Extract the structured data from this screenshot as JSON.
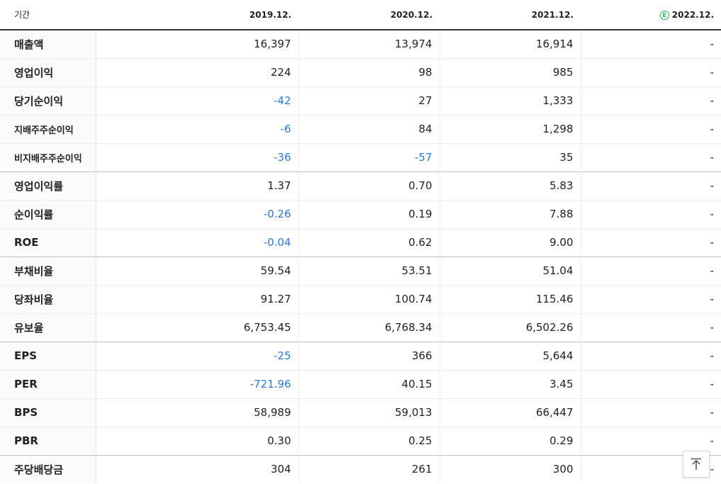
{
  "header": {
    "period_label": "기간",
    "columns": [
      "2019.12.",
      "2020.12.",
      "2021.12.",
      "2022.12."
    ],
    "estimate_badge": "E"
  },
  "rows": [
    {
      "label": "매출액",
      "values": [
        "16,397",
        "13,974",
        "16,914",
        "-"
      ]
    },
    {
      "label": "영업이익",
      "values": [
        "224",
        "98",
        "985",
        "-"
      ]
    },
    {
      "label": "당기순이익",
      "values": [
        "-42",
        "27",
        "1,333",
        "-"
      ]
    },
    {
      "label": "지배주주순이익",
      "values": [
        "-6",
        "84",
        "1,298",
        "-"
      ]
    },
    {
      "label": "비지배주주순이익",
      "values": [
        "-36",
        "-57",
        "35",
        "-"
      ]
    },
    {
      "label": "영업이익률",
      "values": [
        "1.37",
        "0.70",
        "5.83",
        "-"
      ]
    },
    {
      "label": "순이익률",
      "values": [
        "-0.26",
        "0.19",
        "7.88",
        "-"
      ]
    },
    {
      "label": "ROE",
      "values": [
        "-0.04",
        "0.62",
        "9.00",
        "-"
      ]
    },
    {
      "label": "부채비율",
      "values": [
        "59.54",
        "53.51",
        "51.04",
        "-"
      ]
    },
    {
      "label": "당좌비율",
      "values": [
        "91.27",
        "100.74",
        "115.46",
        "-"
      ]
    },
    {
      "label": "유보율",
      "values": [
        "6,753.45",
        "6,768.34",
        "6,502.26",
        "-"
      ]
    },
    {
      "label": "EPS",
      "values": [
        "-25",
        "366",
        "5,644",
        "-"
      ]
    },
    {
      "label": "PER",
      "values": [
        "-721.96",
        "40.15",
        "3.45",
        "-"
      ]
    },
    {
      "label": "BPS",
      "values": [
        "58,989",
        "59,013",
        "66,447",
        "-"
      ]
    },
    {
      "label": "PBR",
      "values": [
        "0.30",
        "0.25",
        "0.29",
        "-"
      ]
    },
    {
      "label": "주당배당금",
      "values": [
        "304",
        "261",
        "300",
        "-"
      ]
    }
  ],
  "colors": {
    "negative": "#2b7bd6",
    "estimate_badge": "#1fb25a"
  },
  "scroll_top_button": {
    "icon": "arrow-up-to-top-icon"
  }
}
